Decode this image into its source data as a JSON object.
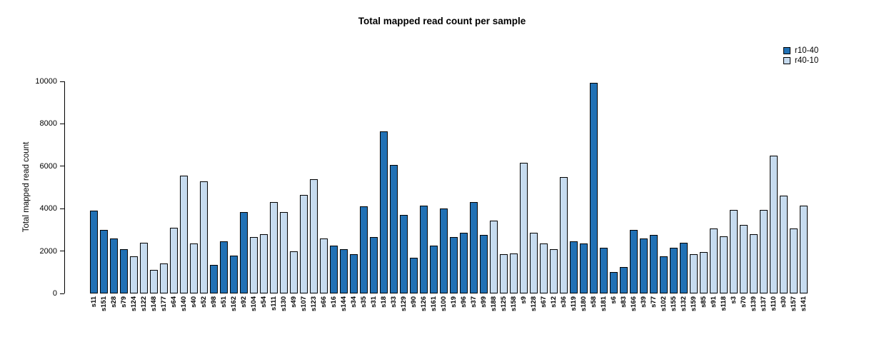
{
  "chart_data": {
    "type": "bar",
    "title": "Total mapped read count per sample",
    "xlabel": "",
    "ylabel": "Total mapped read count",
    "ylim": [
      0,
      10000
    ],
    "yticks": [
      0,
      2000,
      4000,
      6000,
      8000,
      10000
    ],
    "grid": false,
    "legend_position": "top-right",
    "legend": [
      {
        "label": "r10-40",
        "color": "#2171b5"
      },
      {
        "label": "r40-10",
        "color": "#c6dbef"
      }
    ],
    "samples": [
      {
        "id": "s11",
        "value": 3900,
        "group": "r10-40"
      },
      {
        "id": "s151",
        "value": 3000,
        "group": "r10-40"
      },
      {
        "id": "s28",
        "value": 2600,
        "group": "r10-40"
      },
      {
        "id": "s79",
        "value": 2100,
        "group": "r10-40"
      },
      {
        "id": "s124",
        "value": 1750,
        "group": "r40-10"
      },
      {
        "id": "s122",
        "value": 2400,
        "group": "r40-10"
      },
      {
        "id": "s148",
        "value": 1100,
        "group": "r40-10"
      },
      {
        "id": "s177",
        "value": 1400,
        "group": "r40-10"
      },
      {
        "id": "s64",
        "value": 3100,
        "group": "r40-10"
      },
      {
        "id": "s140",
        "value": 5550,
        "group": "r40-10"
      },
      {
        "id": "s40",
        "value": 2350,
        "group": "r40-10"
      },
      {
        "id": "s52",
        "value": 5300,
        "group": "r40-10"
      },
      {
        "id": "s98",
        "value": 1350,
        "group": "r10-40"
      },
      {
        "id": "s51",
        "value": 2450,
        "group": "r10-40"
      },
      {
        "id": "s162",
        "value": 1800,
        "group": "r10-40"
      },
      {
        "id": "s92",
        "value": 3850,
        "group": "r10-40"
      },
      {
        "id": "s104",
        "value": 2650,
        "group": "r40-10"
      },
      {
        "id": "s54",
        "value": 2800,
        "group": "r40-10"
      },
      {
        "id": "s111",
        "value": 4300,
        "group": "r40-10"
      },
      {
        "id": "s130",
        "value": 3850,
        "group": "r40-10"
      },
      {
        "id": "s49",
        "value": 2000,
        "group": "r40-10"
      },
      {
        "id": "s107",
        "value": 4650,
        "group": "r40-10"
      },
      {
        "id": "s123",
        "value": 5400,
        "group": "r40-10"
      },
      {
        "id": "s66",
        "value": 2600,
        "group": "r40-10"
      },
      {
        "id": "s16",
        "value": 2250,
        "group": "r10-40"
      },
      {
        "id": "s144",
        "value": 2100,
        "group": "r10-40"
      },
      {
        "id": "s34",
        "value": 1850,
        "group": "r10-40"
      },
      {
        "id": "s35",
        "value": 4100,
        "group": "r10-40"
      },
      {
        "id": "s31",
        "value": 2650,
        "group": "r10-40"
      },
      {
        "id": "s18",
        "value": 7650,
        "group": "r10-40"
      },
      {
        "id": "s33",
        "value": 6050,
        "group": "r10-40"
      },
      {
        "id": "s129",
        "value": 3700,
        "group": "r10-40"
      },
      {
        "id": "s90",
        "value": 1700,
        "group": "r10-40"
      },
      {
        "id": "s126",
        "value": 4150,
        "group": "r10-40"
      },
      {
        "id": "s161",
        "value": 2250,
        "group": "r10-40"
      },
      {
        "id": "s100",
        "value": 4000,
        "group": "r10-40"
      },
      {
        "id": "s19",
        "value": 2650,
        "group": "r10-40"
      },
      {
        "id": "s96",
        "value": 2850,
        "group": "r10-40"
      },
      {
        "id": "s37",
        "value": 4300,
        "group": "r10-40"
      },
      {
        "id": "s99",
        "value": 2750,
        "group": "r10-40"
      },
      {
        "id": "s188",
        "value": 3450,
        "group": "r40-10"
      },
      {
        "id": "s125",
        "value": 1850,
        "group": "r40-10"
      },
      {
        "id": "s158",
        "value": 1900,
        "group": "r40-10"
      },
      {
        "id": "s9",
        "value": 6150,
        "group": "r40-10"
      },
      {
        "id": "s128",
        "value": 2850,
        "group": "r40-10"
      },
      {
        "id": "s67",
        "value": 2350,
        "group": "r40-10"
      },
      {
        "id": "s12",
        "value": 2100,
        "group": "r40-10"
      },
      {
        "id": "s36",
        "value": 5500,
        "group": "r40-10"
      },
      {
        "id": "s119",
        "value": 2450,
        "group": "r10-40"
      },
      {
        "id": "s180",
        "value": 2350,
        "group": "r10-40"
      },
      {
        "id": "s58",
        "value": 9950,
        "group": "r10-40"
      },
      {
        "id": "s181",
        "value": 2150,
        "group": "r10-40"
      },
      {
        "id": "s6",
        "value": 1000,
        "group": "r10-40"
      },
      {
        "id": "s83",
        "value": 1250,
        "group": "r10-40"
      },
      {
        "id": "s166",
        "value": 3000,
        "group": "r10-40"
      },
      {
        "id": "s39",
        "value": 2600,
        "group": "r10-40"
      },
      {
        "id": "s77",
        "value": 2750,
        "group": "r10-40"
      },
      {
        "id": "s102",
        "value": 1750,
        "group": "r10-40"
      },
      {
        "id": "s155",
        "value": 2150,
        "group": "r10-40"
      },
      {
        "id": "s132",
        "value": 2400,
        "group": "r10-40"
      },
      {
        "id": "s159",
        "value": 1850,
        "group": "r40-10"
      },
      {
        "id": "s85",
        "value": 1950,
        "group": "r40-10"
      },
      {
        "id": "s91",
        "value": 3050,
        "group": "r40-10"
      },
      {
        "id": "s118",
        "value": 2700,
        "group": "r40-10"
      },
      {
        "id": "s3",
        "value": 3950,
        "group": "r40-10"
      },
      {
        "id": "s70",
        "value": 3250,
        "group": "r40-10"
      },
      {
        "id": "s139",
        "value": 2800,
        "group": "r40-10"
      },
      {
        "id": "s137",
        "value": 3950,
        "group": "r40-10"
      },
      {
        "id": "s110",
        "value": 6500,
        "group": "r40-10"
      },
      {
        "id": "s30",
        "value": 4600,
        "group": "r40-10"
      },
      {
        "id": "s157",
        "value": 3050,
        "group": "r40-10"
      },
      {
        "id": "s141",
        "value": 4150,
        "group": "r40-10"
      }
    ]
  }
}
